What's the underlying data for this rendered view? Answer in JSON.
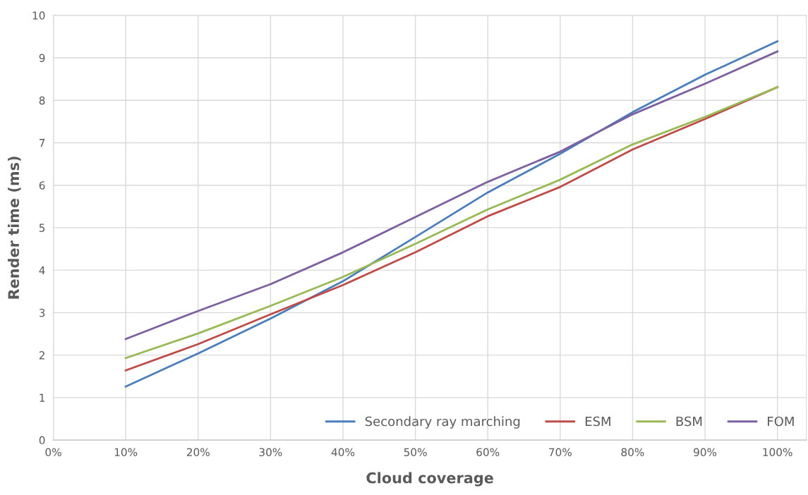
{
  "chart_data": {
    "type": "line",
    "xlabel": "Cloud coverage",
    "ylabel": "Render time (ms)",
    "x": [
      10,
      20,
      30,
      40,
      50,
      60,
      70,
      80,
      90,
      100
    ],
    "series": [
      {
        "name": "Secondary ray marching",
        "color": "#4a7ebb",
        "values": [
          1.26,
          2.04,
          2.86,
          3.74,
          4.78,
          5.83,
          6.74,
          7.72,
          8.6,
          9.39
        ]
      },
      {
        "name": "ESM",
        "color": "#be4b48",
        "values": [
          1.64,
          2.26,
          2.96,
          3.65,
          4.42,
          5.27,
          5.96,
          6.84,
          7.56,
          8.31
        ]
      },
      {
        "name": "BSM",
        "color": "#98b954",
        "values": [
          1.93,
          2.51,
          3.16,
          3.84,
          4.62,
          5.43,
          6.13,
          6.96,
          7.61,
          8.31
        ]
      },
      {
        "name": "FOM",
        "color": "#7d60a0",
        "values": [
          2.38,
          3.04,
          3.67,
          4.42,
          5.25,
          6.08,
          6.79,
          7.67,
          8.39,
          9.15
        ]
      }
    ],
    "xlim": [
      0,
      104
    ],
    "xticks": [
      {
        "value": 0,
        "label": "0%"
      },
      {
        "value": 10,
        "label": "10%"
      },
      {
        "value": 20,
        "label": "20%"
      },
      {
        "value": 30,
        "label": "30%"
      },
      {
        "value": 40,
        "label": "40%"
      },
      {
        "value": 50,
        "label": "50%"
      },
      {
        "value": 60,
        "label": "60%"
      },
      {
        "value": 70,
        "label": "70%"
      },
      {
        "value": 80,
        "label": "80%"
      },
      {
        "value": 90,
        "label": "90%"
      },
      {
        "value": 100,
        "label": "100%"
      }
    ],
    "ylim": [
      0,
      10
    ],
    "yticks": [
      0,
      1,
      2,
      3,
      4,
      5,
      6,
      7,
      8,
      9,
      10
    ],
    "grid": true,
    "legend": "bottom right",
    "marker": "none",
    "line_style": "solid"
  }
}
